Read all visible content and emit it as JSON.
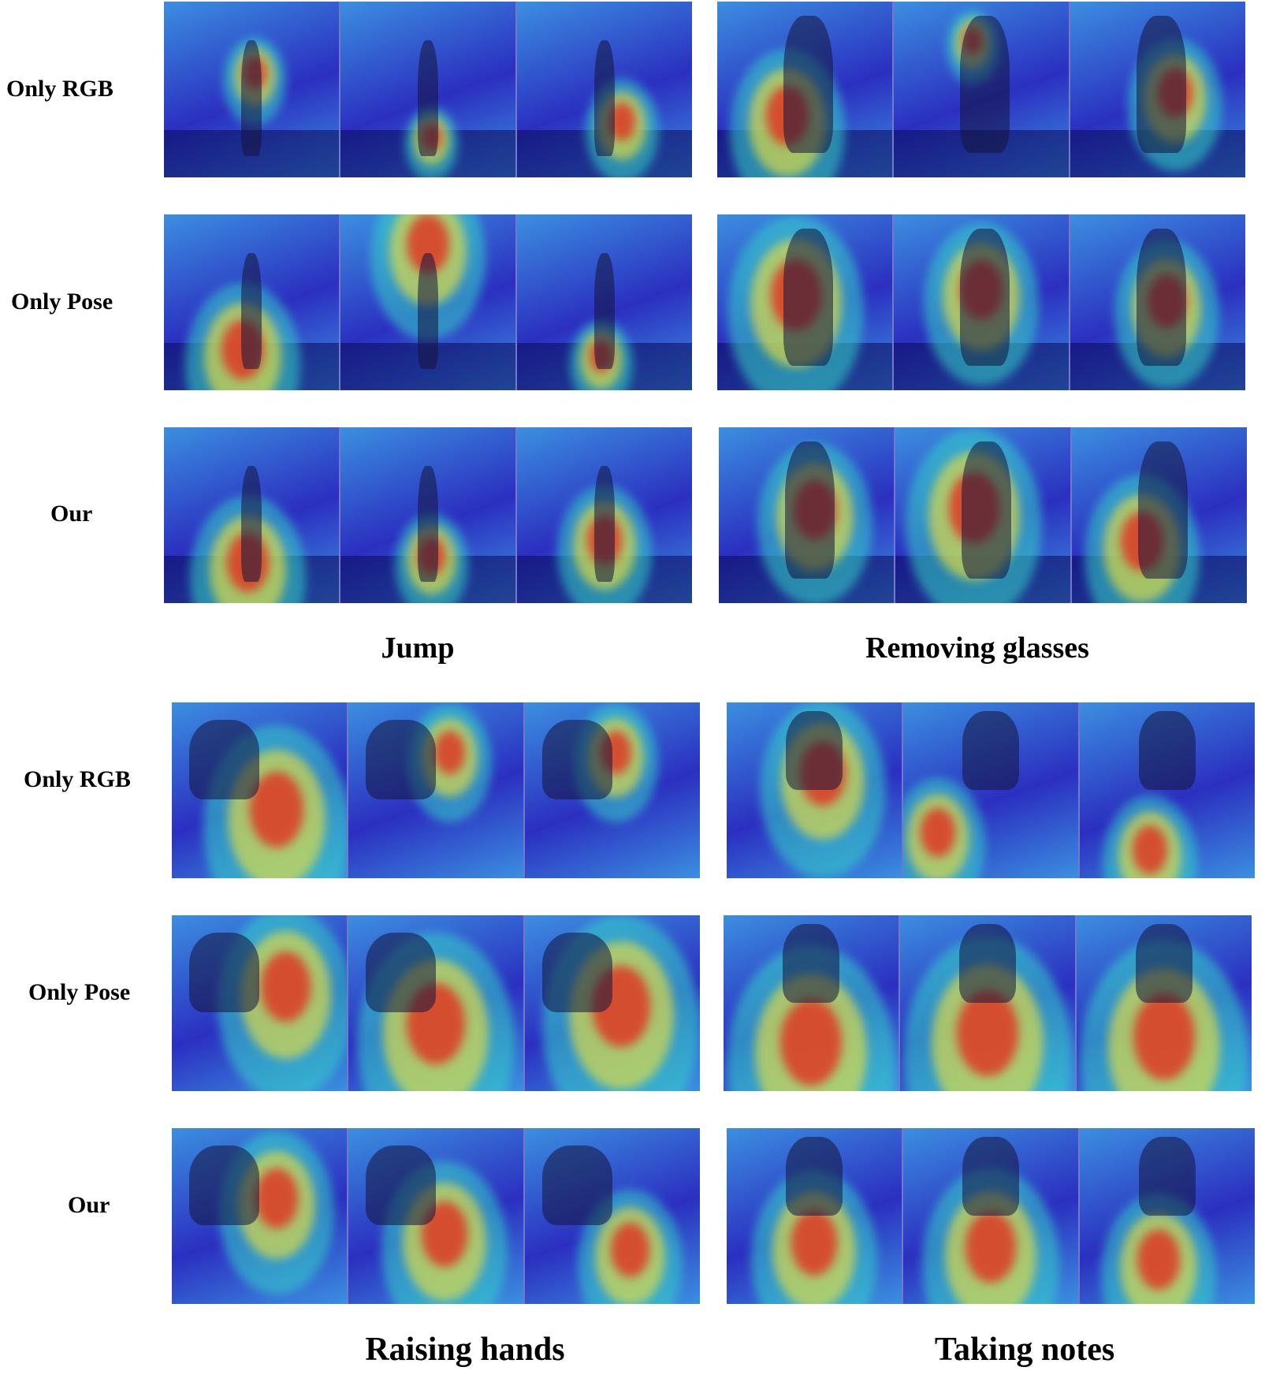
{
  "figure": {
    "groups": [
      {
        "caption": "Jump",
        "scene": "indoor-jump",
        "rows": [
          {
            "label": "Only RGB",
            "frames": [
              "rgb-attention-jump-1",
              "rgb-attention-jump-2",
              "rgb-attention-jump-3"
            ]
          },
          {
            "label": "Only Pose",
            "frames": [
              "pose-attention-jump-1",
              "pose-attention-jump-2",
              "pose-attention-jump-3"
            ]
          },
          {
            "label": "Our",
            "frames": [
              "our-attention-jump-1",
              "our-attention-jump-2",
              "our-attention-jump-3"
            ]
          }
        ]
      },
      {
        "caption": "Removing glasses",
        "scene": "chair",
        "rows": [
          {
            "label": "Only RGB",
            "frames": [
              "rgb-attention-glasses-1",
              "rgb-attention-glasses-2",
              "rgb-attention-glasses-3"
            ]
          },
          {
            "label": "Only Pose",
            "frames": [
              "pose-attention-glasses-1",
              "pose-attention-glasses-2",
              "pose-attention-glasses-3"
            ]
          },
          {
            "label": "Our",
            "frames": [
              "our-attention-glasses-1",
              "our-attention-glasses-2",
              "our-attention-glasses-3"
            ]
          }
        ]
      },
      {
        "caption": "Raising hands",
        "scene": "closeup",
        "rows": [
          {
            "label": "Only RGB",
            "frames": [
              "rgb-attention-hands-1",
              "rgb-attention-hands-2",
              "rgb-attention-hands-3"
            ]
          },
          {
            "label": "Only Pose",
            "frames": [
              "pose-attention-hands-1",
              "pose-attention-hands-2",
              "pose-attention-hands-3"
            ]
          },
          {
            "label": "Our",
            "frames": [
              "our-attention-hands-1",
              "our-attention-hands-2",
              "our-attention-hands-3"
            ]
          }
        ]
      },
      {
        "caption": "Taking notes",
        "scene": "desk",
        "rows": [
          {
            "label": "Only RGB",
            "frames": [
              "rgb-attention-notes-1",
              "rgb-attention-notes-2",
              "rgb-attention-notes-3"
            ]
          },
          {
            "label": "Only Pose",
            "frames": [
              "pose-attention-notes-1",
              "pose-attention-notes-2",
              "pose-attention-notes-3"
            ]
          },
          {
            "label": "Our",
            "frames": [
              "our-attention-notes-1",
              "our-attention-notes-2",
              "our-attention-notes-3"
            ]
          }
        ]
      }
    ],
    "heatmap_colors": {
      "cold": "#2b2fc0",
      "cool": "#3b8fe0",
      "mid": "#35d6c8",
      "warm": "#e8e040",
      "hot": "#e03020"
    }
  }
}
